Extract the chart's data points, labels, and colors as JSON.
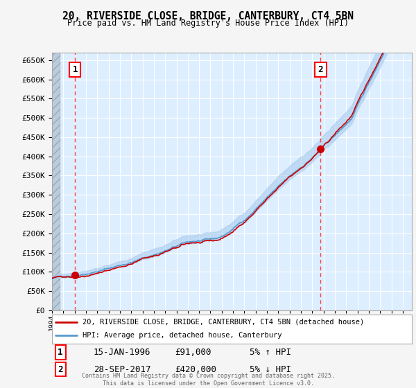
{
  "title": "20, RIVERSIDE CLOSE, BRIDGE, CANTERBURY, CT4 5BN",
  "subtitle": "Price paid vs. HM Land Registry's House Price Index (HPI)",
  "ylim": [
    0,
    670000
  ],
  "yticks": [
    0,
    50000,
    100000,
    150000,
    200000,
    250000,
    300000,
    350000,
    400000,
    450000,
    500000,
    550000,
    600000,
    650000
  ],
  "ytick_labels": [
    "£0",
    "£50K",
    "£100K",
    "£150K",
    "£200K",
    "£250K",
    "£300K",
    "£350K",
    "£400K",
    "£450K",
    "£500K",
    "£550K",
    "£600K",
    "£650K"
  ],
  "xlim_start": 1994.0,
  "xlim_end": 2025.8,
  "plot_bg_color": "#ddeeff",
  "grid_color": "#ffffff",
  "sale1_x": 1996.04,
  "sale1_y": 91000,
  "sale1_label": "1",
  "sale1_date": "15-JAN-1996",
  "sale1_price": "£91,000",
  "sale1_hpi": "5% ↑ HPI",
  "sale2_x": 2017.74,
  "sale2_y": 420000,
  "sale2_label": "2",
  "sale2_date": "28-SEP-2017",
  "sale2_price": "£420,000",
  "sale2_hpi": "5% ↓ HPI",
  "legend_line1": "20, RIVERSIDE CLOSE, BRIDGE, CANTERBURY, CT4 5BN (detached house)",
  "legend_line2": "HPI: Average price, detached house, Canterbury",
  "footer": "Contains HM Land Registry data © Crown copyright and database right 2025.\nThis data is licensed under the Open Government Licence v3.0.",
  "line_color_red": "#cc0000",
  "line_color_blue": "#5599cc",
  "shade_color": "#aaccee",
  "vline_color": "#ff4444",
  "marker_color": "#cc0000",
  "hatch_color": "#bbccdd"
}
